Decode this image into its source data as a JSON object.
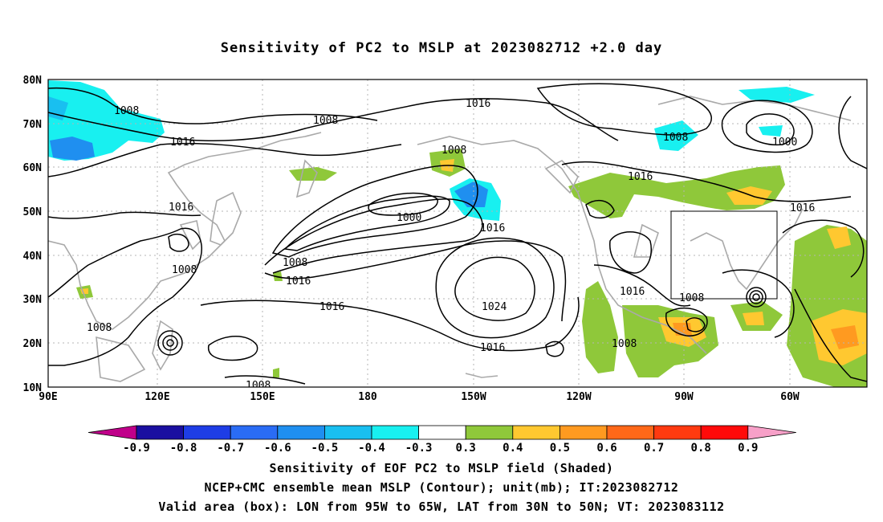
{
  "title": "Sensitivity of PC2 to MSLP at 2023082712 +2.0 day",
  "lat_labels": [
    "80N",
    "70N",
    "60N",
    "50N",
    "40N",
    "30N",
    "20N",
    "10N"
  ],
  "lon_labels": [
    "90E",
    "120E",
    "150E",
    "180",
    "150W",
    "120W",
    "90W",
    "60W"
  ],
  "contour_labels": [
    "1008",
    "1008",
    "1016",
    "1016",
    "1008",
    "1016",
    "1000",
    "1016",
    "1008",
    "1016",
    "1016",
    "1024",
    "1016",
    "1016",
    "1016",
    "1008",
    "1008",
    "1008",
    "1008",
    "1000",
    "1016",
    "1008"
  ],
  "colorbar": {
    "labels": [
      "-0.9",
      "-0.8",
      "-0.7",
      "-0.6",
      "-0.5",
      "-0.4",
      "-0.3",
      "0.3",
      "0.4",
      "0.5",
      "0.6",
      "0.7",
      "0.8",
      "0.9"
    ],
    "colors": [
      "#c0008a",
      "#1a0fa0",
      "#1e3de6",
      "#2a6cf5",
      "#1f8ff0",
      "#19bff0",
      "#18f0f0",
      "#ffffff",
      "#8fc83a",
      "#ffc830",
      "#ff9a20",
      "#ff6818",
      "#ff3a10",
      "#ff0a0a",
      "#f7a0c8"
    ]
  },
  "shade_colors": {
    "cyan": "#18f0f0",
    "lightblue": "#19bff0",
    "blue": "#1f8ff0",
    "green": "#8fc83a",
    "yellow": "#ffc830",
    "orange": "#ff9a20"
  },
  "footer": [
    "Sensitivity of EOF PC2 to MSLP field (Shaded)",
    "NCEP+CMC ensemble mean MSLP (Contour); unit(mb); IT:2023082712",
    "Valid area (box): LON from 95W to 65W, LAT from 30N to 50N; VT: 2023083112"
  ]
}
